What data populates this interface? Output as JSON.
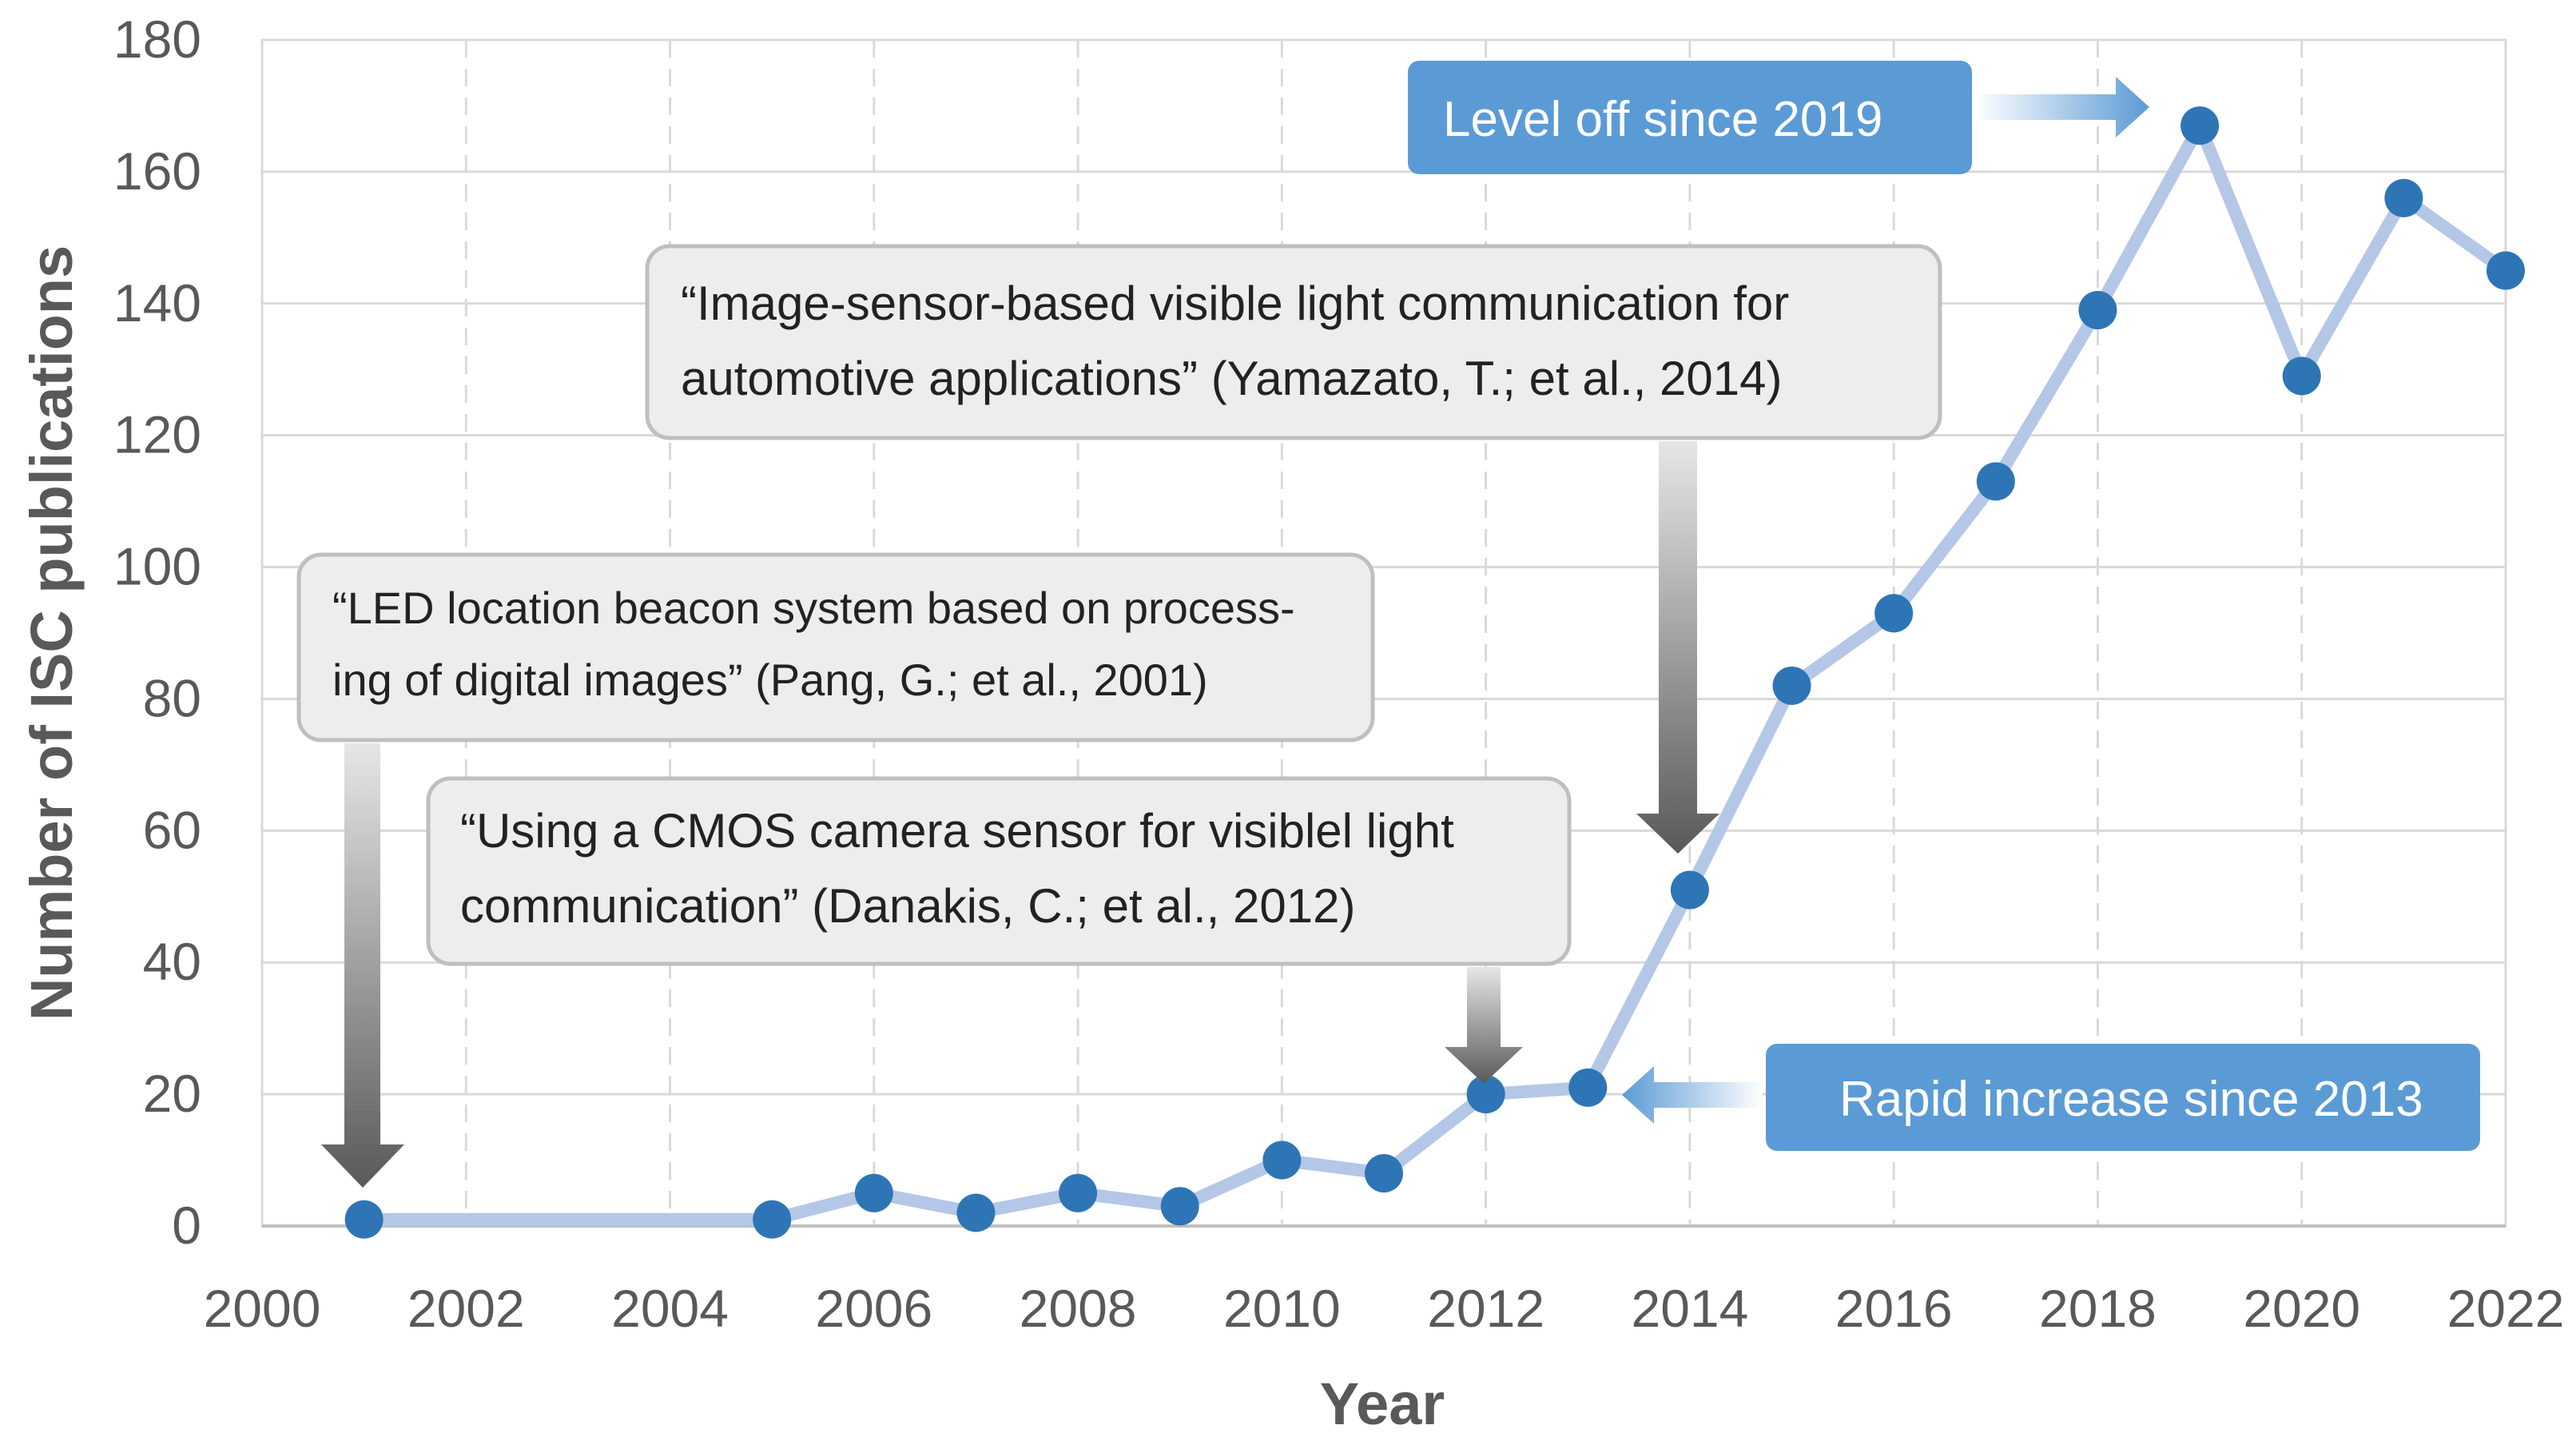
{
  "chart_data": {
    "type": "line",
    "title": "",
    "xlabel": "Year",
    "ylabel": "Number of ISC publications",
    "xlim": [
      2000,
      2022
    ],
    "ylim": [
      0,
      180
    ],
    "xticks": [
      "2000",
      "2002",
      "2004",
      "2006",
      "2008",
      "2010",
      "2012",
      "2014",
      "2016",
      "2018",
      "2020",
      "2022"
    ],
    "yticks": [
      "0",
      "20",
      "40",
      "60",
      "80",
      "100",
      "120",
      "140",
      "160",
      "180"
    ],
    "grid": {
      "horizontal": true,
      "vertical": "dashed"
    },
    "series": [
      {
        "name": "ISC publications",
        "color": "#b4c7e7",
        "marker_color": "#2e75b6",
        "x": [
          2001,
          2005,
          2006,
          2007,
          2008,
          2009,
          2010,
          2011,
          2012,
          2013,
          2014,
          2015,
          2016,
          2017,
          2018,
          2019,
          2020,
          2021,
          2022
        ],
        "y": [
          1,
          1,
          5,
          2,
          5,
          3,
          10,
          8,
          20,
          21,
          51,
          82,
          93,
          113,
          139,
          167,
          129,
          156,
          145
        ]
      }
    ],
    "annotations": [
      {
        "id": "pang",
        "lines": [
          "“LED location beacon system based on process-",
          "ing of digital images” (Pang, G.; et al., 2001)"
        ],
        "points_to": [
          2001,
          1
        ]
      },
      {
        "id": "danakis",
        "lines": [
          "“Using a CMOS camera sensor for visiblel light",
          "communication” (Danakis, C.; et al., 2012)"
        ],
        "points_to": [
          2012,
          20
        ]
      },
      {
        "id": "yamazato",
        "lines": [
          "“Image-sensor-based visible light communication for",
          "automotive applications” (Yamazato, T.; et al., 2014)"
        ],
        "points_to": [
          2014,
          51
        ]
      },
      {
        "id": "level-off",
        "text": "Level off since 2019",
        "points_to": [
          2019,
          167
        ]
      },
      {
        "id": "rapid",
        "text": "Rapid increase since 2013",
        "points_to": [
          2013,
          21
        ]
      }
    ]
  },
  "colors": {
    "axis_text": "#595959",
    "grid": "#d9d9d9",
    "callout_fill": "#ededed",
    "callout_stroke": "#bfbfbf",
    "blue_box": "#5b9bd5",
    "line": "#b4c7e7",
    "marker": "#2e75b6"
  }
}
